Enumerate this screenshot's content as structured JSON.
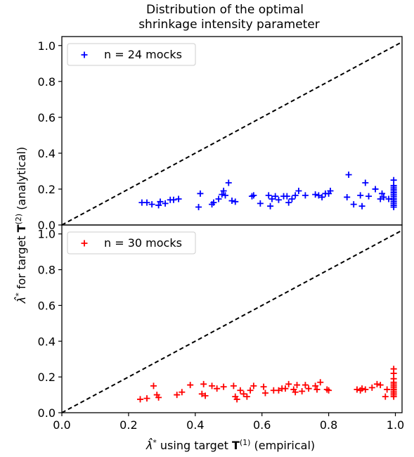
{
  "chart_data": {
    "type": "scatter",
    "title_lines": [
      "Distribution of the optimal",
      "shrinkage intensity parameter"
    ],
    "xlabel": "λ̂* using target T(1) (empirical)",
    "ylabel": "λ̂* for target T(2) (analytical)",
    "xlim": [
      0.0,
      1.02
    ],
    "x_ticks": [
      "0.0",
      "0.2",
      "0.4",
      "0.6",
      "0.8",
      "1.0"
    ],
    "x_tick_values": [
      0.0,
      0.2,
      0.4,
      0.6,
      0.8,
      1.0
    ],
    "reference_line": "y = x",
    "panels": [
      {
        "position": "top",
        "ylim": [
          0.0,
          1.05
        ],
        "y_ticks": [
          "0.0",
          "0.2",
          "0.4",
          "0.6",
          "0.8",
          "1.0"
        ],
        "y_tick_values": [
          0.0,
          0.2,
          0.4,
          0.6,
          0.8,
          1.0
        ],
        "legend": "n = 24 mocks",
        "color": "#0000ff",
        "marker": "plus",
        "points": [
          [
            0.24,
            0.125
          ],
          [
            0.255,
            0.125
          ],
          [
            0.27,
            0.115
          ],
          [
            0.29,
            0.11
          ],
          [
            0.295,
            0.13
          ],
          [
            0.31,
            0.12
          ],
          [
            0.325,
            0.14
          ],
          [
            0.335,
            0.14
          ],
          [
            0.35,
            0.145
          ],
          [
            0.41,
            0.1
          ],
          [
            0.415,
            0.175
          ],
          [
            0.45,
            0.115
          ],
          [
            0.455,
            0.125
          ],
          [
            0.47,
            0.145
          ],
          [
            0.48,
            0.17
          ],
          [
            0.485,
            0.19
          ],
          [
            0.49,
            0.165
          ],
          [
            0.5,
            0.235
          ],
          [
            0.51,
            0.135
          ],
          [
            0.52,
            0.13
          ],
          [
            0.57,
            0.16
          ],
          [
            0.575,
            0.165
          ],
          [
            0.595,
            0.12
          ],
          [
            0.62,
            0.165
          ],
          [
            0.625,
            0.105
          ],
          [
            0.63,
            0.145
          ],
          [
            0.64,
            0.16
          ],
          [
            0.65,
            0.14
          ],
          [
            0.665,
            0.16
          ],
          [
            0.675,
            0.16
          ],
          [
            0.68,
            0.125
          ],
          [
            0.69,
            0.145
          ],
          [
            0.7,
            0.165
          ],
          [
            0.71,
            0.19
          ],
          [
            0.73,
            0.165
          ],
          [
            0.76,
            0.17
          ],
          [
            0.77,
            0.165
          ],
          [
            0.78,
            0.155
          ],
          [
            0.79,
            0.175
          ],
          [
            0.8,
            0.175
          ],
          [
            0.805,
            0.19
          ],
          [
            0.855,
            0.155
          ],
          [
            0.86,
            0.28
          ],
          [
            0.875,
            0.115
          ],
          [
            0.895,
            0.165
          ],
          [
            0.9,
            0.105
          ],
          [
            0.91,
            0.235
          ],
          [
            0.92,
            0.16
          ],
          [
            0.94,
            0.2
          ],
          [
            0.955,
            0.145
          ],
          [
            0.96,
            0.175
          ],
          [
            0.965,
            0.155
          ],
          [
            0.98,
            0.145
          ],
          [
            0.995,
            0.25
          ],
          [
            0.995,
            0.22
          ],
          [
            0.995,
            0.21
          ],
          [
            0.995,
            0.2
          ],
          [
            0.995,
            0.19
          ],
          [
            0.995,
            0.18
          ],
          [
            0.995,
            0.17
          ],
          [
            0.995,
            0.16
          ],
          [
            0.995,
            0.15
          ],
          [
            0.995,
            0.14
          ],
          [
            0.995,
            0.13
          ],
          [
            0.995,
            0.12
          ],
          [
            0.995,
            0.11
          ],
          [
            0.995,
            0.1
          ]
        ]
      },
      {
        "position": "bottom",
        "ylim": [
          0.0,
          1.05
        ],
        "y_ticks": [
          "0.0",
          "0.2",
          "0.4",
          "0.6",
          "0.8",
          "1.0"
        ],
        "y_tick_values": [
          0.0,
          0.2,
          0.4,
          0.6,
          0.8,
          1.0
        ],
        "legend": "n = 30 mocks",
        "color": "#ff0000",
        "marker": "plus",
        "points": [
          [
            0.235,
            0.075
          ],
          [
            0.255,
            0.08
          ],
          [
            0.275,
            0.15
          ],
          [
            0.285,
            0.1
          ],
          [
            0.29,
            0.085
          ],
          [
            0.345,
            0.1
          ],
          [
            0.36,
            0.115
          ],
          [
            0.385,
            0.155
          ],
          [
            0.42,
            0.105
          ],
          [
            0.425,
            0.16
          ],
          [
            0.43,
            0.095
          ],
          [
            0.45,
            0.15
          ],
          [
            0.465,
            0.135
          ],
          [
            0.485,
            0.145
          ],
          [
            0.515,
            0.15
          ],
          [
            0.52,
            0.09
          ],
          [
            0.525,
            0.075
          ],
          [
            0.535,
            0.125
          ],
          [
            0.545,
            0.105
          ],
          [
            0.555,
            0.09
          ],
          [
            0.565,
            0.125
          ],
          [
            0.575,
            0.15
          ],
          [
            0.605,
            0.145
          ],
          [
            0.61,
            0.11
          ],
          [
            0.635,
            0.125
          ],
          [
            0.65,
            0.125
          ],
          [
            0.66,
            0.135
          ],
          [
            0.67,
            0.135
          ],
          [
            0.68,
            0.16
          ],
          [
            0.695,
            0.13
          ],
          [
            0.7,
            0.115
          ],
          [
            0.705,
            0.155
          ],
          [
            0.72,
            0.12
          ],
          [
            0.73,
            0.155
          ],
          [
            0.74,
            0.135
          ],
          [
            0.76,
            0.15
          ],
          [
            0.765,
            0.13
          ],
          [
            0.775,
            0.17
          ],
          [
            0.795,
            0.13
          ],
          [
            0.8,
            0.125
          ],
          [
            0.885,
            0.13
          ],
          [
            0.895,
            0.125
          ],
          [
            0.9,
            0.135
          ],
          [
            0.91,
            0.13
          ],
          [
            0.93,
            0.14
          ],
          [
            0.945,
            0.16
          ],
          [
            0.955,
            0.155
          ],
          [
            0.97,
            0.09
          ],
          [
            0.975,
            0.13
          ],
          [
            0.995,
            0.245
          ],
          [
            0.995,
            0.22
          ],
          [
            0.995,
            0.19
          ],
          [
            0.995,
            0.17
          ],
          [
            0.995,
            0.16
          ],
          [
            0.995,
            0.15
          ],
          [
            0.995,
            0.14
          ],
          [
            0.995,
            0.13
          ],
          [
            0.995,
            0.12
          ],
          [
            0.995,
            0.11
          ],
          [
            0.995,
            0.1
          ],
          [
            0.995,
            0.09
          ]
        ]
      }
    ],
    "legend_position": "upper-left",
    "grid": false
  }
}
